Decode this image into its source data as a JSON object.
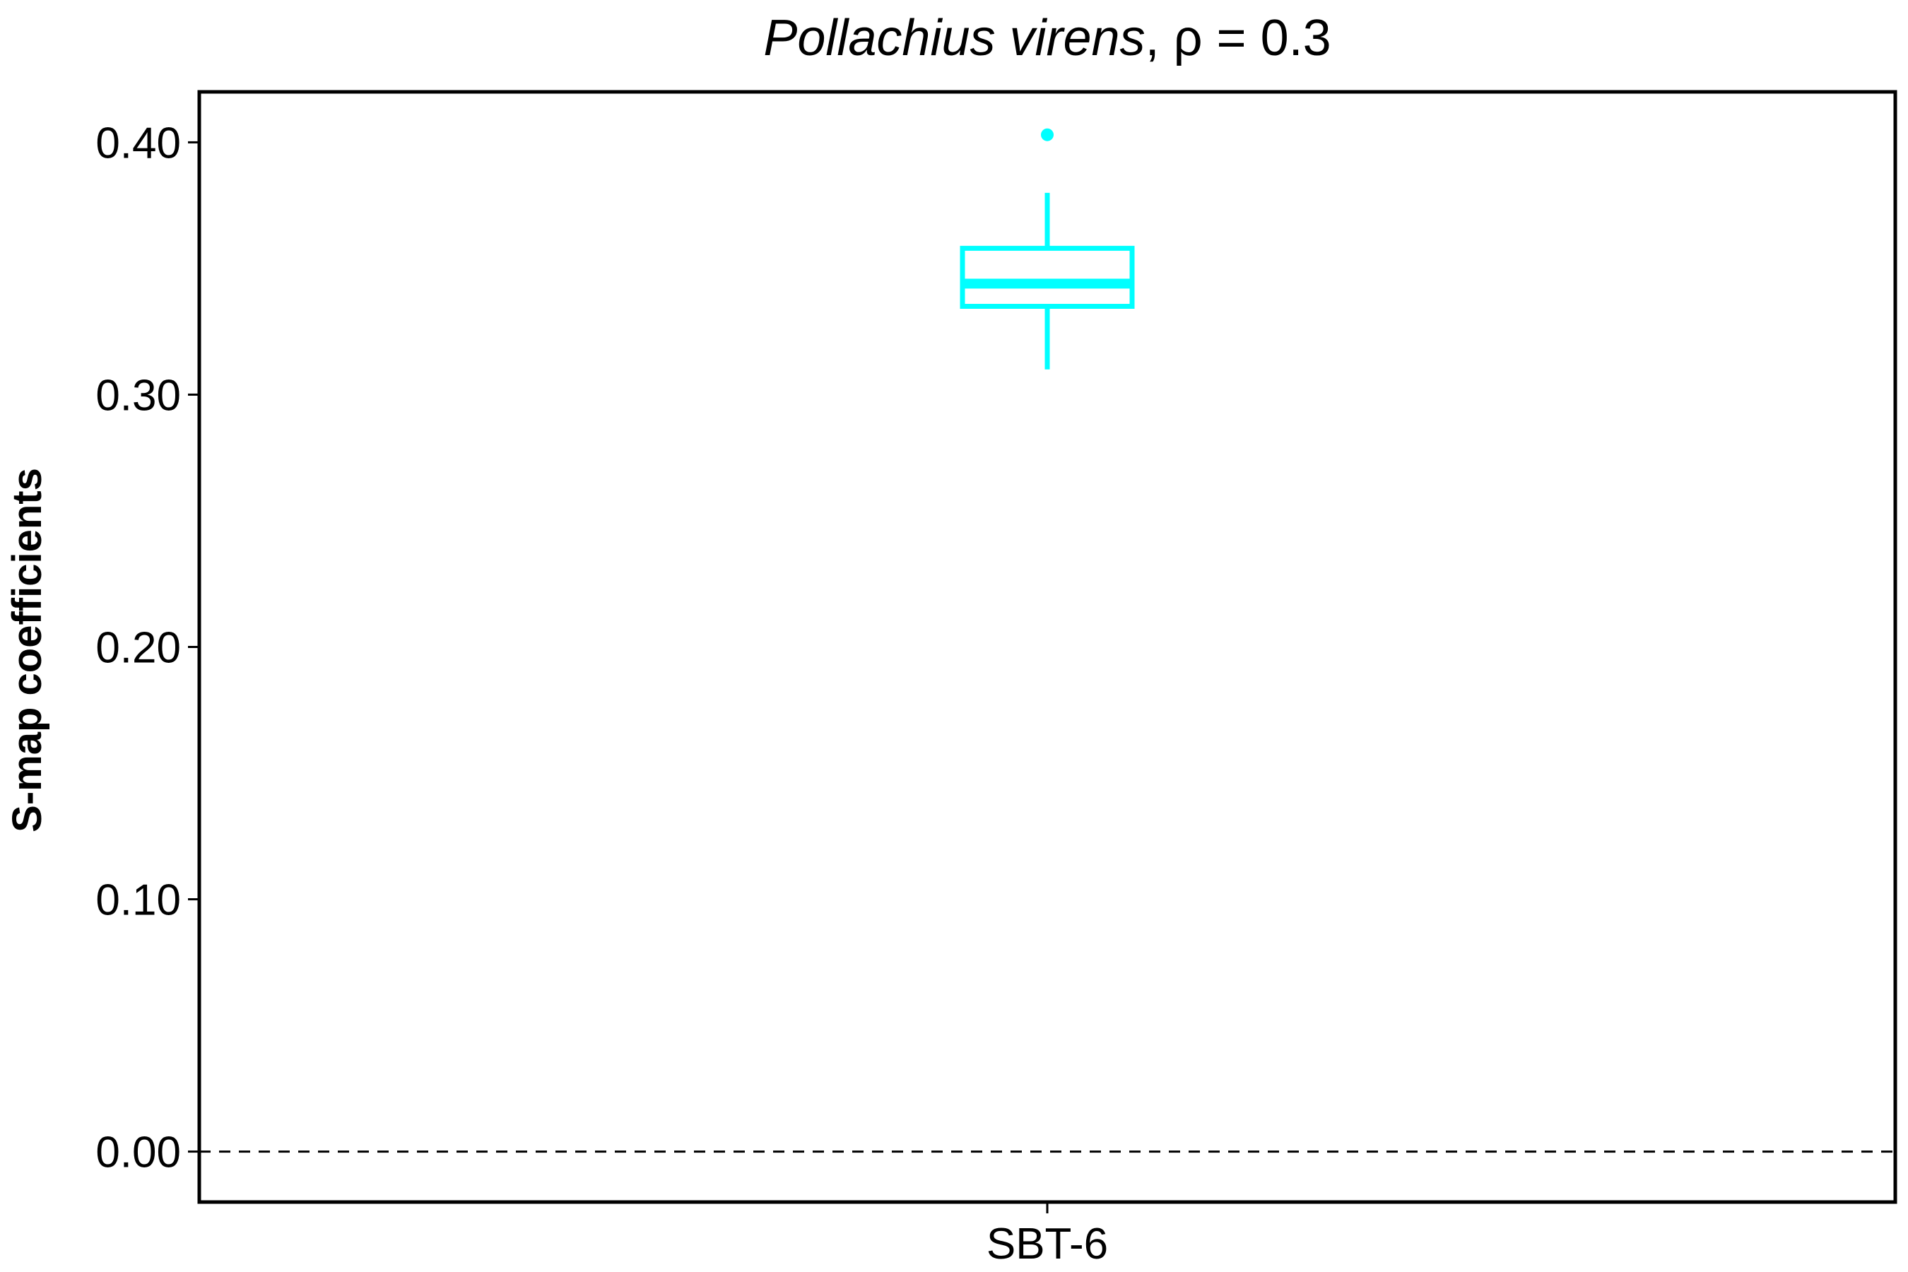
{
  "chart_data": {
    "type": "box",
    "title": {
      "species": "Pollachius virens",
      "suffix": ", ρ = 0.3"
    },
    "xlabel": "",
    "ylabel": "S-map coefficients",
    "categories": [
      "SBT-6"
    ],
    "ylim": [
      -0.02,
      0.42
    ],
    "yticks": [
      {
        "value": 0.0,
        "label": "0.00"
      },
      {
        "value": 0.1,
        "label": "0.10"
      },
      {
        "value": 0.2,
        "label": "0.20"
      },
      {
        "value": 0.3,
        "label": "0.30"
      },
      {
        "value": 0.4,
        "label": "0.40"
      }
    ],
    "boxes": [
      {
        "category": "SBT-6",
        "whisker_low": 0.31,
        "q1": 0.335,
        "median": 0.344,
        "q3": 0.358,
        "whisker_high": 0.38,
        "outliers": [
          0.403
        ],
        "color": "#00ffff"
      }
    ],
    "reference_line": {
      "value": 0.0,
      "style": "dashed",
      "color": "#000000"
    },
    "grid": false,
    "legend": "none"
  }
}
